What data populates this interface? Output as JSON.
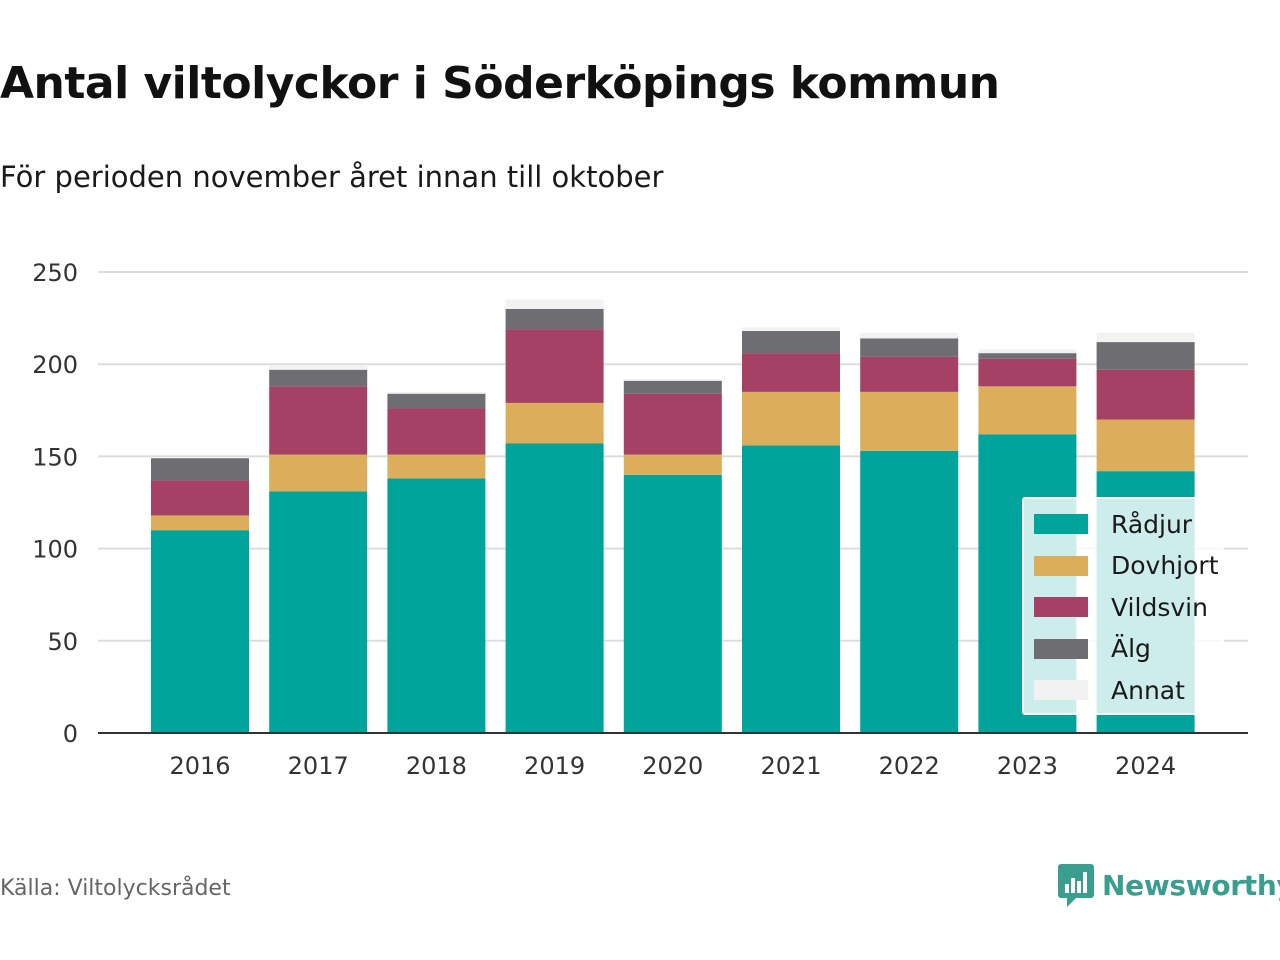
{
  "title": "Antal viltolyckor i Söderköpings kommun",
  "subtitle": "För perioden november året innan till oktober",
  "source": "Källa: Viltolycksrådet",
  "brand": {
    "name": "Newsworthy",
    "color": "#3a9e8f",
    "icon": "chart-speech-bubble-icon"
  },
  "chart_data": {
    "type": "bar",
    "stacked": true,
    "categories": [
      "2016",
      "2017",
      "2018",
      "2019",
      "2020",
      "2021",
      "2022",
      "2023",
      "2024"
    ],
    "series": [
      {
        "name": "Rådjur",
        "color": "#00a49a",
        "values": [
          110,
          131,
          138,
          157,
          140,
          156,
          153,
          162,
          142
        ]
      },
      {
        "name": "Dovhjort",
        "color": "#dcad5a",
        "values": [
          8,
          20,
          13,
          22,
          11,
          29,
          32,
          26,
          28
        ]
      },
      {
        "name": "Vildsvin",
        "color": "#a44165",
        "values": [
          19,
          37,
          25,
          40,
          33,
          21,
          19,
          15,
          27
        ]
      },
      {
        "name": "Älg",
        "color": "#6d6d72",
        "values": [
          12,
          9,
          8,
          11,
          7,
          12,
          10,
          3,
          15
        ]
      },
      {
        "name": "Annat",
        "color": "#f2f2f2",
        "values": [
          0,
          2,
          1,
          5,
          1,
          2,
          3,
          2,
          5
        ]
      }
    ],
    "ylim": [
      0,
      250
    ],
    "yticks": [
      0,
      50,
      100,
      150,
      200,
      250
    ],
    "grid": true,
    "legend_position": "bottom-right"
  }
}
